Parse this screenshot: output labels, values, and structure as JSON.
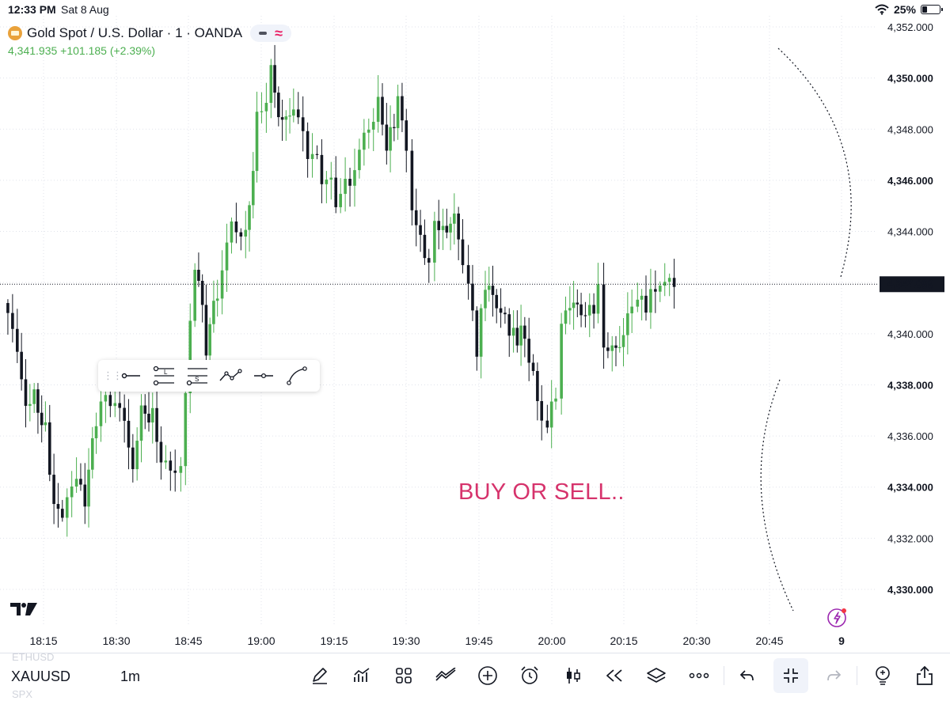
{
  "status_bar": {
    "time": "12:33 PM",
    "date": "Sat 8 Aug",
    "battery": "25%",
    "battery_level": 0.25,
    "icons": [
      "wifi-icon",
      "battery-icon"
    ]
  },
  "legend": {
    "title": "Gold Spot / U.S. Dollar · 1 · OANDA",
    "price_line": "4,341.935 +101.185 (+2.39%)",
    "symbol_icon": "gold-bar-icon",
    "pill_icons": [
      "minus-icon",
      "approx-icon"
    ]
  },
  "colors": {
    "up": "#4caf50",
    "down": "#131722",
    "annotation": "#d6336c",
    "accent_pink": "#e91e63",
    "grid": "#e0e3eb",
    "last_price_bg": "#131722"
  },
  "chart_data": {
    "type": "candlestick",
    "symbol": "XAUUSD",
    "interval": "1m",
    "last_price_label": "4,341.935",
    "last_price": 4341.935,
    "ylim": [
      4329.5,
      4352.2
    ],
    "y_ticks": [
      {
        "value": 4352,
        "label": "4,352.000"
      },
      {
        "value": 4350,
        "label": "4,350.000"
      },
      {
        "value": 4348,
        "label": "4,348.000"
      },
      {
        "value": 4346,
        "label": "4,346.000"
      },
      {
        "value": 4344,
        "label": "4,344.000"
      },
      {
        "value": 4342,
        "label": "4,342.000"
      },
      {
        "value": 4340,
        "label": "4,340.000"
      },
      {
        "value": 4338,
        "label": "4,338.000"
      },
      {
        "value": 4336,
        "label": "4,336.000"
      },
      {
        "value": 4334,
        "label": "4,334.000"
      },
      {
        "value": 4332,
        "label": "4,332.000"
      },
      {
        "value": 4330,
        "label": "4,330.000"
      }
    ],
    "x_ticks": [
      "18:15",
      "18:30",
      "18:45",
      "19:00",
      "19:15",
      "19:30",
      "19:45",
      "20:00",
      "20:15",
      "20:30",
      "20:45",
      "9"
    ],
    "x_range_minutes": [
      18.07,
      21.05
    ],
    "close_path": [
      [
        18.07,
        4341.2
      ],
      [
        18.12,
        4339.4
      ],
      [
        18.15,
        4337.1
      ],
      [
        18.18,
        4337.9
      ],
      [
        18.22,
        4336.0
      ],
      [
        18.25,
        4333.6
      ],
      [
        18.28,
        4333.0
      ],
      [
        18.33,
        4334.6
      ],
      [
        18.36,
        4333.1
      ],
      [
        18.4,
        4336.9
      ],
      [
        18.45,
        4337.5
      ],
      [
        18.5,
        4336.6
      ],
      [
        18.53,
        4334.7
      ],
      [
        18.56,
        4337.4
      ],
      [
        18.6,
        4336.6
      ],
      [
        18.63,
        4335.3
      ],
      [
        18.68,
        4334.6
      ],
      [
        18.7,
        4334.7
      ],
      [
        18.75,
        4343.0
      ],
      [
        18.79,
        4339.6
      ],
      [
        18.83,
        4341.6
      ],
      [
        18.88,
        4344.3
      ],
      [
        18.93,
        4343.7
      ],
      [
        18.97,
        4348.2
      ],
      [
        19.02,
        4350.1
      ],
      [
        19.06,
        4348.2
      ],
      [
        19.1,
        4348.9
      ],
      [
        19.15,
        4347.2
      ],
      [
        19.2,
        4346.3
      ],
      [
        19.25,
        4345.3
      ],
      [
        19.3,
        4345.9
      ],
      [
        19.35,
        4347.7
      ],
      [
        19.4,
        4348.9
      ],
      [
        19.43,
        4347.6
      ],
      [
        19.47,
        4349.0
      ],
      [
        19.5,
        4347.5
      ],
      [
        19.52,
        4344.7
      ],
      [
        19.55,
        4343.6
      ],
      [
        19.58,
        4342.3
      ],
      [
        19.6,
        4344.5
      ],
      [
        19.63,
        4343.9
      ],
      [
        19.67,
        4344.5
      ],
      [
        19.7,
        4343.0
      ],
      [
        19.72,
        4341.9
      ],
      [
        19.75,
        4339.6
      ],
      [
        19.78,
        4342.0
      ],
      [
        19.82,
        4341.2
      ],
      [
        19.85,
        4340.4
      ],
      [
        19.88,
        4339.7
      ],
      [
        19.92,
        4339.9
      ],
      [
        19.95,
        4338.3
      ],
      [
        19.98,
        4336.7
      ],
      [
        20.0,
        4336.3
      ],
      [
        20.03,
        4338.0
      ],
      [
        20.05,
        4340.1
      ],
      [
        20.08,
        4341.2
      ],
      [
        20.12,
        4340.9
      ],
      [
        20.15,
        4340.7
      ],
      [
        20.18,
        4341.4
      ],
      [
        20.2,
        4339.8
      ],
      [
        20.23,
        4339.4
      ],
      [
        20.27,
        4339.8
      ],
      [
        20.3,
        4341.5
      ],
      [
        20.32,
        4341.0
      ],
      [
        20.35,
        4341.2
      ],
      [
        20.4,
        4342.0
      ],
      [
        20.45,
        4341.935
      ]
    ]
  },
  "drawing_toolbar": {
    "tools": [
      {
        "name": "horizontal-ray-icon"
      },
      {
        "name": "long-position-icon",
        "letter": "L"
      },
      {
        "name": "short-position-icon",
        "letter": "S"
      },
      {
        "name": "path-icon"
      },
      {
        "name": "horizontal-line-icon"
      },
      {
        "name": "curve-icon"
      }
    ]
  },
  "annotation_text": "BUY OR SELL..",
  "bottom_bar": {
    "symbol": "XAUUSD",
    "ghost_symbol_above": "ETHUSD",
    "ghost_symbol_below": "SPX",
    "interval": "1m",
    "icons": [
      "pen-icon",
      "indicators-icon",
      "layout-grid-icon",
      "compare-icon",
      "add-icon",
      "alarm-icon",
      "candles-icon",
      "replay-icon",
      "layers-icon",
      "more-icon",
      "undo-icon",
      "fullscreen-exit-icon",
      "redo-icon",
      "idea-icon",
      "share-icon"
    ]
  }
}
